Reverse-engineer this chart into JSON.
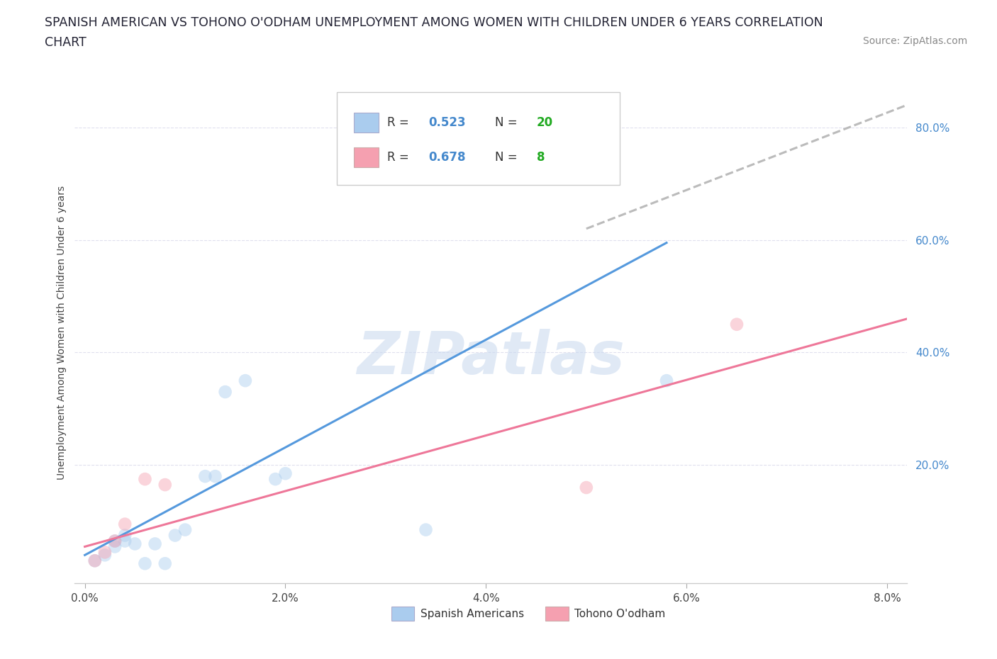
{
  "title_line1": "SPANISH AMERICAN VS TOHONO O'ODHAM UNEMPLOYMENT AMONG WOMEN WITH CHILDREN UNDER 6 YEARS CORRELATION",
  "title_line2": "CHART",
  "source": "Source: ZipAtlas.com",
  "ylabel": "Unemployment Among Women with Children Under 6 years",
  "x_tick_labels": [
    "0.0%",
    "2.0%",
    "4.0%",
    "6.0%",
    "8.0%"
  ],
  "x_tick_values": [
    0.0,
    0.02,
    0.04,
    0.06,
    0.08
  ],
  "y_tick_labels": [
    "20.0%",
    "40.0%",
    "60.0%",
    "80.0%"
  ],
  "y_tick_values": [
    0.2,
    0.4,
    0.6,
    0.8
  ],
  "xlim": [
    -0.001,
    0.082
  ],
  "ylim": [
    -0.01,
    0.88
  ],
  "background_color": "#ffffff",
  "grid_color": "#e0e0ee",
  "spanish_color": "#aaccee",
  "tohono_color": "#f5a0b0",
  "spanish_line_color": "#5599dd",
  "tohono_line_color": "#ee7799",
  "dashed_line_color": "#bbbbbb",
  "R_spanish": 0.523,
  "N_spanish": 20,
  "R_tohono": 0.678,
  "N_tohono": 8,
  "legend_R_color": "#4488cc",
  "legend_N_color": "#22aa22",
  "watermark": "ZIPatlas",
  "watermark_color": "#c8d8ee",
  "spanish_points_x": [
    0.001,
    0.002,
    0.003,
    0.003,
    0.004,
    0.004,
    0.005,
    0.006,
    0.007,
    0.008,
    0.009,
    0.01,
    0.012,
    0.013,
    0.014,
    0.016,
    0.019,
    0.02,
    0.034,
    0.058
  ],
  "spanish_points_y": [
    0.03,
    0.04,
    0.055,
    0.065,
    0.065,
    0.075,
    0.06,
    0.025,
    0.06,
    0.025,
    0.075,
    0.085,
    0.18,
    0.18,
    0.33,
    0.35,
    0.175,
    0.185,
    0.085,
    0.35
  ],
  "tohono_points_x": [
    0.001,
    0.002,
    0.003,
    0.004,
    0.006,
    0.008,
    0.05,
    0.065
  ],
  "tohono_points_y": [
    0.03,
    0.045,
    0.065,
    0.095,
    0.175,
    0.165,
    0.16,
    0.45
  ],
  "spanish_line_x": [
    0.0,
    0.058
  ],
  "spanish_line_y": [
    0.04,
    0.595
  ],
  "tohono_line_x": [
    0.0,
    0.082
  ],
  "tohono_line_y": [
    0.055,
    0.46
  ],
  "dashed_line_x": [
    0.05,
    0.082
  ],
  "dashed_line_y": [
    0.62,
    0.84
  ],
  "marker_size": 180,
  "marker_alpha": 0.45,
  "line_width": 2.2
}
